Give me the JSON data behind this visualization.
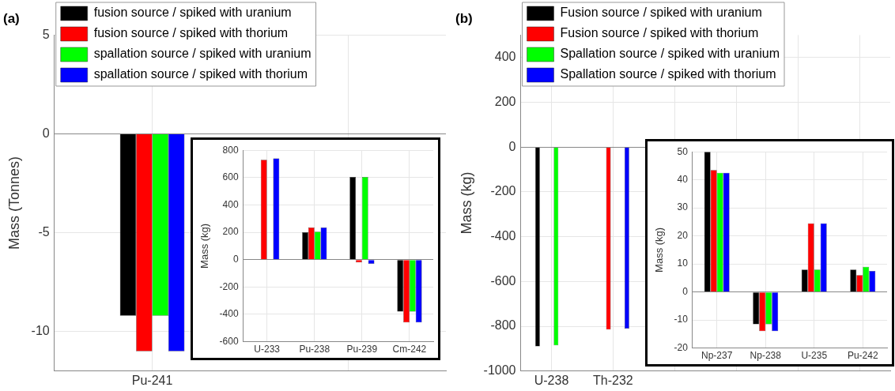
{
  "chart_data": [
    {
      "type": "bar",
      "title": "(a)",
      "ylabel": "Mass (Tonnes)",
      "categories": [
        "Pu-241",
        null
      ],
      "ylim": [
        -12,
        5
      ],
      "yticks": [
        -10,
        -5,
        0,
        5
      ],
      "grid": true,
      "legend": "top left",
      "series": [
        {
          "name": "fusion source / spiked with uranium",
          "color": "#000000",
          "values": [
            -9.2,
            null
          ]
        },
        {
          "name": "fusion source / spiked with thorium",
          "color": "#ff0000",
          "values": [
            -11,
            null
          ]
        },
        {
          "name": "spallation source / spiked with uranium",
          "color": "#00ff00",
          "values": [
            -9.2,
            null
          ]
        },
        {
          "name": "spallation source / spiked with thorium",
          "color": "#0000ff",
          "values": [
            -11,
            null
          ]
        }
      ]
    },
    {
      "type": "bar",
      "ylabel": "Mass (kg)",
      "categories": [
        "U-233",
        "Pu-238",
        "Pu-239",
        "Cm-242"
      ],
      "ylim": [
        -600,
        800
      ],
      "yticks": [
        -600,
        -400,
        -200,
        0,
        200,
        400,
        600,
        800
      ],
      "grid": true,
      "series": [
        {
          "color": "#000000",
          "values": [
            0,
            200,
            605,
            -380
          ]
        },
        {
          "color": "#ff0000",
          "values": [
            730,
            235,
            -20,
            -460
          ]
        },
        {
          "color": "#00ff00",
          "values": [
            0,
            205,
            605,
            -380
          ]
        },
        {
          "color": "#0000ff",
          "values": [
            740,
            235,
            -30,
            -460
          ]
        }
      ]
    },
    {
      "type": "bar",
      "title": "(b)",
      "ylabel": "Mass (kg)",
      "categories": [
        "U-238",
        "Th-232",
        null,
        null,
        null,
        null
      ],
      "ylim": [
        -1000,
        500
      ],
      "yticks": [
        -1000,
        -800,
        -600,
        -400,
        -200,
        0,
        200,
        400
      ],
      "grid": true,
      "legend": "top left",
      "series": [
        {
          "name": "Fusion source / spiked with uranium",
          "color": "#000000",
          "values": [
            -890,
            0,
            null,
            null,
            null,
            null
          ]
        },
        {
          "name": "Fusion source / spiked with thorium",
          "color": "#ff0000",
          "values": [
            0,
            -815,
            null,
            null,
            null,
            null
          ]
        },
        {
          "name": "Spallation source / spiked with uranium",
          "color": "#00ff00",
          "values": [
            -885,
            0,
            null,
            null,
            null,
            null
          ]
        },
        {
          "name": "Spallation source / spiked with thorium",
          "color": "#0000ff",
          "values": [
            0,
            -810,
            null,
            null,
            null,
            null
          ]
        }
      ]
    },
    {
      "type": "bar",
      "ylabel": "Mass (kg)",
      "categories": [
        "Np-237",
        "Np-238",
        "U-235",
        "Pu-242"
      ],
      "ylim": [
        -20,
        50
      ],
      "yticks": [
        -20,
        -10,
        0,
        10,
        20,
        30,
        40,
        50
      ],
      "grid": true,
      "series": [
        {
          "color": "#000000",
          "values": [
            50,
            -11.5,
            8,
            8
          ]
        },
        {
          "color": "#ff0000",
          "values": [
            43.5,
            -14,
            24.5,
            6
          ]
        },
        {
          "color": "#00ff00",
          "values": [
            42.5,
            -11.5,
            8,
            9
          ]
        },
        {
          "color": "#0000ff",
          "values": [
            42.5,
            -14,
            24.5,
            7.5
          ]
        }
      ]
    }
  ]
}
